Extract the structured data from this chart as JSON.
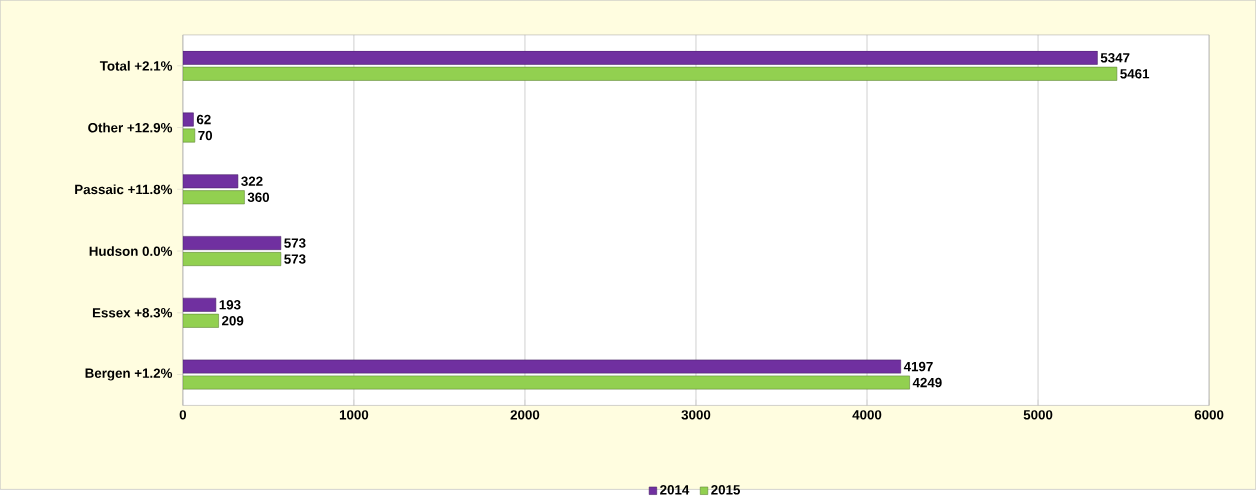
{
  "chart_data": {
    "type": "bar",
    "orientation": "horizontal",
    "categories": [
      "Total   +2.1%",
      "Other  +12.9%",
      "Passaic  +11.8%",
      "Hudson  0.0%",
      "Essex  +8.3%",
      "Bergen +1.2%"
    ],
    "series": [
      {
        "name": "2014",
        "color": "#7030a0",
        "values": [
          5347,
          62,
          322,
          573,
          193,
          4197
        ]
      },
      {
        "name": "2015",
        "color": "#92d050",
        "values": [
          5461,
          70,
          360,
          573,
          209,
          4249
        ]
      }
    ],
    "xlim": [
      0,
      6000
    ],
    "xticks": [
      0,
      1000,
      2000,
      3000,
      4000,
      5000,
      6000
    ],
    "grid": "x",
    "legend": "bottom",
    "data_labels": true
  }
}
